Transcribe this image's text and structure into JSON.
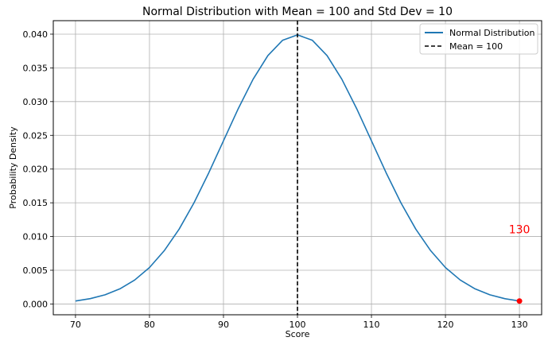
{
  "chart_data": {
    "type": "line",
    "title": "Normal Distribution with Mean = 100 and Std Dev = 10",
    "xlabel": "Score",
    "ylabel": "Probability Density",
    "xlim": [
      67,
      133
    ],
    "ylim": [
      -0.0016,
      0.042
    ],
    "x_ticks": [
      70,
      80,
      90,
      100,
      110,
      120,
      130
    ],
    "y_ticks": [
      0.0,
      0.005,
      0.01,
      0.015,
      0.02,
      0.025,
      0.03,
      0.035,
      0.04
    ],
    "x_tick_labels": [
      "70",
      "80",
      "90",
      "100",
      "110",
      "120",
      "130"
    ],
    "y_tick_labels": [
      "0.000",
      "0.005",
      "0.010",
      "0.015",
      "0.020",
      "0.025",
      "0.030",
      "0.035",
      "0.040"
    ],
    "grid": true,
    "legend_position": "top-right",
    "distribution": {
      "mean": 100,
      "std_dev": 10
    },
    "series": [
      {
        "name": "Normal Distribution",
        "color": "#1f77b4",
        "style": "solid",
        "x": [
          70,
          72,
          74,
          76,
          78,
          80,
          82,
          84,
          86,
          88,
          90,
          92,
          94,
          96,
          98,
          100,
          102,
          104,
          106,
          108,
          110,
          112,
          114,
          116,
          118,
          120,
          122,
          124,
          126,
          128,
          130
        ],
        "y": [
          0.00044,
          0.00079,
          0.00136,
          0.00224,
          0.00355,
          0.0054,
          0.0079,
          0.01109,
          0.01497,
          0.01942,
          0.0242,
          0.02897,
          0.03332,
          0.03683,
          0.0391,
          0.03989,
          0.0391,
          0.03683,
          0.03332,
          0.02897,
          0.0242,
          0.01942,
          0.01497,
          0.01109,
          0.0079,
          0.0054,
          0.00355,
          0.00224,
          0.00136,
          0.00079,
          0.00044
        ]
      }
    ],
    "vline": {
      "name": "Mean = 100",
      "x": 100,
      "color": "#000000",
      "style": "dashed"
    },
    "highlight_point": {
      "x": 130,
      "y": 0.00044,
      "color": "#ff0000",
      "label": "130",
      "label_y": 0.0105
    }
  }
}
